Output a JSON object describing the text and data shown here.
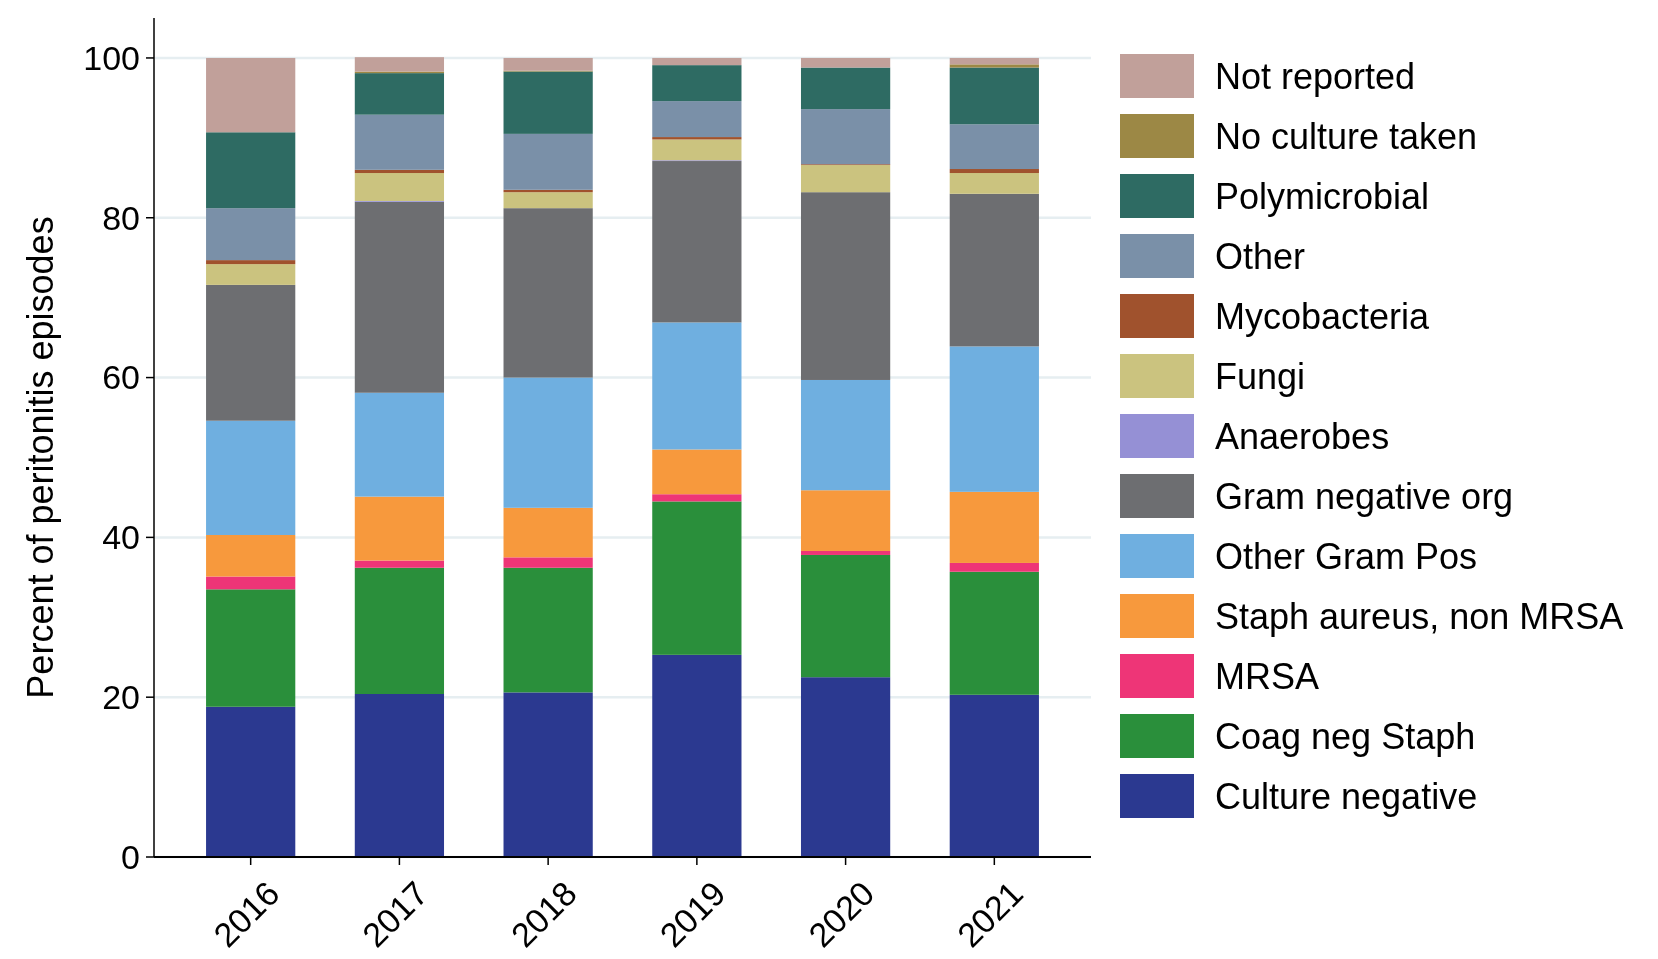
{
  "chart_data": {
    "type": "bar",
    "stacked": true,
    "ylabel": "Percent of peritonitis episodes",
    "categories": [
      "2016",
      "2017",
      "2018",
      "2019",
      "2020",
      "2021"
    ],
    "ylim": [
      0,
      105
    ],
    "yticks": [
      0,
      20,
      40,
      60,
      80,
      100
    ],
    "grid": "y",
    "legend": "right",
    "series": [
      {
        "name": "Culture negative",
        "color": "#2b3990",
        "values": [
          18.8,
          20.4,
          20.6,
          25.3,
          22.5,
          20.3
        ]
      },
      {
        "name": "Coag neg Staph",
        "color": "#2a8f3b",
        "values": [
          14.7,
          15.8,
          15.6,
          19.2,
          15.3,
          15.4
        ]
      },
      {
        "name": "MRSA",
        "color": "#ee3577",
        "values": [
          1.6,
          0.9,
          1.3,
          0.9,
          0.5,
          1.1
        ]
      },
      {
        "name": "Staph aureus, non MRSA",
        "color": "#f7993d",
        "values": [
          5.2,
          8.0,
          6.2,
          5.6,
          7.6,
          8.9
        ]
      },
      {
        "name": "Other Gram Pos",
        "color": "#6fafe0",
        "values": [
          14.3,
          13.0,
          16.3,
          15.9,
          13.8,
          18.2
        ]
      },
      {
        "name": "Gram negative org",
        "color": "#6d6e71",
        "values": [
          17.0,
          23.9,
          21.2,
          20.2,
          23.5,
          19.1
        ]
      },
      {
        "name": "Anaerobes",
        "color": "#9590d5",
        "values": [
          0,
          0.1,
          0,
          0.1,
          0,
          0
        ]
      },
      {
        "name": "Fungi",
        "color": "#cbc37f",
        "values": [
          2.6,
          3.5,
          2.0,
          2.6,
          3.4,
          2.6
        ]
      },
      {
        "name": "Mycobacteria",
        "color": "#a0522d",
        "values": [
          0.5,
          0.4,
          0.3,
          0.3,
          0.1,
          0.5
        ]
      },
      {
        "name": "Other",
        "color": "#7a90a8",
        "values": [
          6.5,
          6.9,
          7.0,
          4.5,
          6.9,
          5.6
        ]
      },
      {
        "name": "Polymicrobial",
        "color": "#2e6b63",
        "values": [
          9.5,
          5.2,
          7.8,
          4.5,
          5.2,
          7.1
        ]
      },
      {
        "name": "No culture taken",
        "color": "#9c8845",
        "values": [
          0,
          0.2,
          0.1,
          0,
          0,
          0.4
        ]
      },
      {
        "name": "Not reported",
        "color": "#c1a09a",
        "values": [
          9.3,
          1.8,
          1.6,
          0.9,
          1.2,
          0.8
        ]
      }
    ]
  }
}
